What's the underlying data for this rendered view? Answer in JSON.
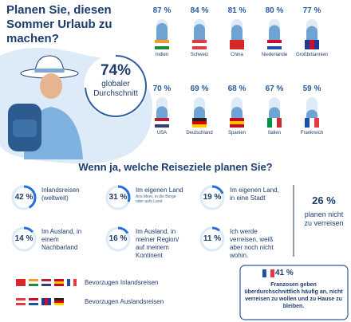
{
  "title": "Planen Sie, diesen Sommer Urlaub zu machen?",
  "average": {
    "share": {
      "value": 74,
      "label": "74%"
    },
    "caption": "globaler Durchschnitt"
  },
  "countries": [
    {
      "name": "Indien",
      "share": {
        "value": 87,
        "label": "87 %"
      }
    },
    {
      "name": "Schweiz",
      "share": {
        "value": 84,
        "label": "84 %"
      }
    },
    {
      "name": "China",
      "share": {
        "value": 81,
        "label": "81 %"
      }
    },
    {
      "name": "Niederlande",
      "share": {
        "value": 80,
        "label": "80 %"
      }
    },
    {
      "name": "Großbritannien",
      "share": {
        "value": 77,
        "label": "77 %"
      }
    },
    {
      "name": "USA",
      "share": {
        "value": 70,
        "label": "70 %"
      }
    },
    {
      "name": "Deutschland",
      "share": {
        "value": 69,
        "label": "69 %"
      }
    },
    {
      "name": "Spanien",
      "share": {
        "value": 68,
        "label": "68 %"
      }
    },
    {
      "name": "Italien",
      "share": {
        "value": 67,
        "label": "67 %"
      }
    },
    {
      "name": "Frankreich",
      "share": {
        "value": 59,
        "label": "59 %"
      }
    }
  ],
  "destinations": {
    "title": "Wenn ja, welche Reiseziele planen Sie?",
    "items": [
      {
        "share": {
          "value": 42,
          "label": "42 %"
        },
        "text": "Inlandsreisen (weltweit)"
      },
      {
        "share": {
          "value": 31,
          "label": "31 %"
        },
        "text": "Im eigenen Land",
        "note": "Ans Meer, in die Berge oder aufs Land"
      },
      {
        "share": {
          "value": 19,
          "label": "19 %"
        },
        "text": "Im eigenen Land, in eine Stadt"
      },
      {
        "share": {
          "value": 14,
          "label": "14 %"
        },
        "text": "Im Ausland, in einem Nachbarland"
      },
      {
        "share": {
          "value": 16,
          "label": "16 %"
        },
        "text": "Im Ausland, in meiner Region/ auf meinem Kontinent"
      },
      {
        "share": {
          "value": 11,
          "label": "11 %"
        },
        "text": "Ich werde verreisen, weiß aber noch nicht wohin."
      }
    ],
    "not_travelling": {
      "share": {
        "value": 26,
        "label": "26 %"
      },
      "text": "planen nicht zu verreisen"
    }
  },
  "legend": [
    "Bevorzugen Inlandsreisen",
    "Bevorzugen Auslandsreisen"
  ],
  "callout": {
    "share": {
      "value": 41,
      "label": "41 %"
    },
    "text": "Franzosen geben überdurchschnittlich häufig an, nicht verreisen zu wollen und zu Hause zu bleiben."
  }
}
